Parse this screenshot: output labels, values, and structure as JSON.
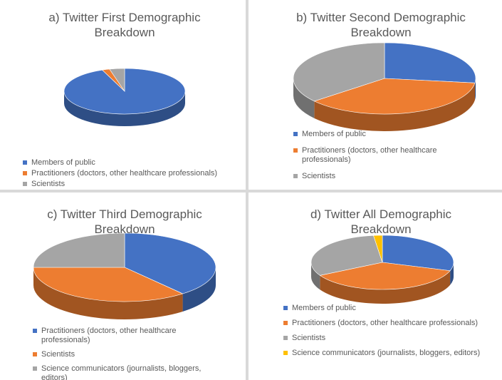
{
  "chart_data": [
    {
      "type": "pie",
      "title": "a) Twitter First Demographic Breakdown",
      "categories": [
        "Members of public",
        "Practitioners (doctors, other healthcare professionals)",
        "Scientists"
      ],
      "values": [
        94,
        2,
        4
      ],
      "colors": [
        "#4472c4",
        "#ed7d31",
        "#a5a5a5"
      ]
    },
    {
      "type": "pie",
      "title": "b) Twitter Second Demographic Breakdown",
      "categories": [
        "Members of public",
        "Practitioners (doctors, other healthcare professionals)",
        "Scientists"
      ],
      "values": [
        27,
        37,
        36
      ],
      "colors": [
        "#4472c4",
        "#ed7d31",
        "#a5a5a5"
      ]
    },
    {
      "type": "pie",
      "title": "c) Twitter Third Demographic Breakdown",
      "categories": [
        "Practitioners (doctors, other healthcare professionals)",
        "Scientists",
        "Science communicators (journalists, bloggers, editors)"
      ],
      "values": [
        39,
        36,
        25
      ],
      "colors": [
        "#4472c4",
        "#ed7d31",
        "#a5a5a5"
      ]
    },
    {
      "type": "pie",
      "title": "d) Twitter All Demographic Breakdown",
      "categories": [
        "Members of public",
        "Practitioners (doctors, other healthcare professionals)",
        "Scientists",
        "Science communicators (journalists, bloggers, editors)"
      ],
      "values": [
        30,
        37,
        31,
        2
      ],
      "colors": [
        "#4472c4",
        "#ed7d31",
        "#a5a5a5",
        "#ffc000"
      ]
    }
  ]
}
